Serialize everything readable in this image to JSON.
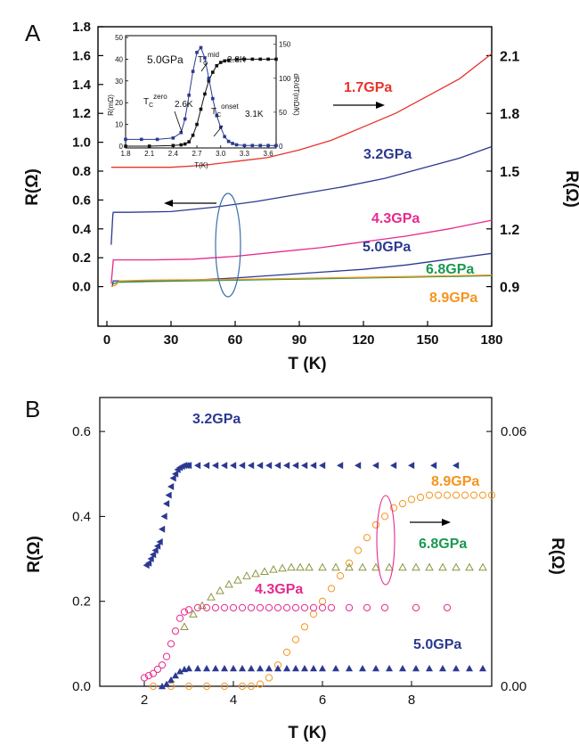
{
  "chart_data": [
    {
      "panel": "A",
      "type": "line",
      "xlabel": "T (K)",
      "ylabel_left": "R(Ω)",
      "ylabel_right": "R(Ω)",
      "xlim": [
        0,
        180
      ],
      "ylim_left": [
        -0.2,
        1.8
      ],
      "ylim_right": [
        0.75,
        2.25
      ],
      "xticks": [
        "0",
        "30",
        "60",
        "90",
        "120",
        "150",
        "180"
      ],
      "yticks_left": [
        "0.0",
        "0.2",
        "0.4",
        "0.6",
        "0.8",
        "1.0",
        "1.2",
        "1.4",
        "1.6",
        "1.8"
      ],
      "yticks_right": [
        "0.9",
        "1.2",
        "1.5",
        "1.8",
        "2.1"
      ],
      "series": [
        {
          "name": "1.7GPa",
          "color": "#e8322b",
          "axis": "right",
          "x": [
            2,
            15,
            30,
            45,
            60,
            75,
            90,
            105,
            120,
            135,
            150,
            165,
            180
          ],
          "y": [
            1.52,
            1.52,
            1.52,
            1.53,
            1.55,
            1.57,
            1.61,
            1.66,
            1.73,
            1.8,
            1.89,
            1.98,
            2.11
          ]
        },
        {
          "name": "3.2GPa",
          "color": "#2b3990",
          "axis": "left",
          "x": [
            2.0,
            2.4,
            2.8,
            3.0,
            10,
            30,
            50,
            70,
            90,
            110,
            130,
            150,
            165,
            180
          ],
          "y": [
            0.29,
            0.4,
            0.5,
            0.515,
            0.515,
            0.52,
            0.55,
            0.59,
            0.64,
            0.69,
            0.75,
            0.83,
            0.89,
            0.97
          ]
        },
        {
          "name": "4.3GPa",
          "color": "#e62a8e",
          "axis": "left",
          "x": [
            2.0,
            2.5,
            2.9,
            3.0,
            20,
            40,
            60,
            80,
            100,
            120,
            140,
            160,
            180
          ],
          "y": [
            0.02,
            0.1,
            0.17,
            0.185,
            0.185,
            0.19,
            0.21,
            0.24,
            0.27,
            0.31,
            0.35,
            0.4,
            0.46
          ]
        },
        {
          "name": "5.0GPa",
          "color": "#2b3990",
          "axis": "left",
          "x": [
            2.5,
            3.0,
            20,
            40,
            60,
            80,
            100,
            120,
            140,
            160,
            180
          ],
          "y": [
            0.0,
            0.04,
            0.04,
            0.045,
            0.06,
            0.08,
            0.1,
            0.12,
            0.15,
            0.19,
            0.23
          ]
        },
        {
          "name": "6.8GPa",
          "color": "#1a9850",
          "axis": "left",
          "x": [
            3,
            5,
            20,
            60,
            100,
            140,
            180
          ],
          "y": [
            0.02,
            0.03,
            0.035,
            0.045,
            0.055,
            0.065,
            0.075
          ]
        },
        {
          "name": "8.9GPa",
          "color": "#f7941d",
          "axis": "left",
          "x": [
            2,
            4,
            6,
            20,
            60,
            100,
            140,
            180
          ],
          "y": [
            0.0,
            0.01,
            0.04,
            0.045,
            0.05,
            0.06,
            0.07,
            0.08
          ]
        }
      ],
      "labels": [
        "1.7GPa",
        "3.2GPa",
        "4.3GPa",
        "5.0GPa",
        "6.8GPa",
        "8.9GPa"
      ],
      "inset": {
        "pressure": "5.0GPa",
        "xlabel": "T(K)",
        "ylabel_left": "R(mΩ)",
        "ylabel_right": "dR/dT(mΩ/K)",
        "xlim": [
          1.8,
          3.7
        ],
        "ylim_left": [
          0,
          50
        ],
        "ylim_right": [
          0,
          160
        ],
        "xticks": [
          "1.8",
          "2.1",
          "2.4",
          "2.7",
          "3.0",
          "3.3",
          "3.6"
        ],
        "yticks_left": [
          "0",
          "10",
          "20",
          "30",
          "40",
          "50"
        ],
        "yticks_right": [
          "0",
          "50",
          "100",
          "150"
        ],
        "tc_mid": "2.8K",
        "tc_zero": "2.6K",
        "tc_onset": "3.1K",
        "resistance": {
          "x": [
            1.8,
            2.1,
            2.4,
            2.5,
            2.55,
            2.6,
            2.65,
            2.7,
            2.75,
            2.8,
            2.85,
            2.9,
            2.95,
            3.0,
            3.05,
            3.1,
            3.2,
            3.3,
            3.4,
            3.5,
            3.6,
            3.7
          ],
          "y": [
            0,
            0,
            0.3,
            0.6,
            1.0,
            2,
            5,
            10,
            17,
            24,
            30,
            34,
            37,
            38.5,
            39.2,
            39.6,
            39.9,
            40,
            40,
            40,
            40,
            40
          ]
        },
        "derivative": {
          "x": [
            1.8,
            2.0,
            2.2,
            2.4,
            2.5,
            2.55,
            2.6,
            2.65,
            2.7,
            2.75,
            2.8,
            2.85,
            2.9,
            2.95,
            3.0,
            3.05,
            3.1,
            3.15,
            3.2,
            3.3,
            3.4,
            3.5,
            3.6,
            3.7
          ],
          "y": [
            10,
            10,
            10,
            12,
            20,
            40,
            75,
            110,
            138,
            145,
            130,
            100,
            70,
            45,
            28,
            14,
            7,
            4,
            2,
            1,
            1,
            1,
            1,
            1
          ]
        }
      }
    },
    {
      "panel": "B",
      "type": "scatter",
      "xlabel": "T (K)",
      "ylabel_left": "R(Ω)",
      "ylabel_right": "R(Ω)",
      "xlim": [
        1,
        9.8
      ],
      "ylim_left": [
        0,
        0.68
      ],
      "ylim_right": [
        0,
        0.068
      ],
      "xticks": [
        "2",
        "4",
        "6",
        "8"
      ],
      "yticks_left": [
        "0.0",
        "0.2",
        "0.4",
        "0.6"
      ],
      "yticks_right": [
        "0.00",
        "0.06"
      ],
      "series": [
        {
          "name": "3.2GPa",
          "color": "#2b3990",
          "marker": "triangle-left-filled",
          "axis": "left",
          "x": [
            2.05,
            2.1,
            2.15,
            2.2,
            2.25,
            2.3,
            2.35,
            2.4,
            2.45,
            2.5,
            2.55,
            2.6,
            2.65,
            2.7,
            2.75,
            2.8,
            2.85,
            2.9,
            2.95,
            3.0,
            3.2,
            3.4,
            3.6,
            3.8,
            4.0,
            4.2,
            4.4,
            4.6,
            4.8,
            5.0,
            5.2,
            5.4,
            5.6,
            5.8,
            6.0,
            6.4,
            6.8,
            7.2,
            7.6,
            8.0,
            8.5,
            9.0
          ],
          "y": [
            0.285,
            0.29,
            0.3,
            0.31,
            0.32,
            0.33,
            0.34,
            0.37,
            0.4,
            0.43,
            0.45,
            0.47,
            0.49,
            0.5,
            0.51,
            0.515,
            0.518,
            0.52,
            0.52,
            0.52,
            0.52,
            0.52,
            0.52,
            0.52,
            0.52,
            0.52,
            0.52,
            0.52,
            0.52,
            0.52,
            0.52,
            0.52,
            0.52,
            0.52,
            0.52,
            0.52,
            0.52,
            0.52,
            0.52,
            0.52,
            0.52,
            0.52
          ]
        },
        {
          "name": "8.9GPa",
          "color": "#f7941d",
          "marker": "circle-open",
          "axis": "right",
          "x": [
            2.2,
            2.6,
            3.0,
            3.4,
            3.8,
            4.2,
            4.4,
            4.6,
            4.8,
            5.0,
            5.2,
            5.4,
            5.6,
            5.8,
            6.0,
            6.2,
            6.4,
            6.6,
            6.8,
            7.0,
            7.2,
            7.4,
            7.6,
            7.8,
            8.0,
            8.2,
            8.4,
            8.6,
            8.8,
            9.0,
            9.2,
            9.4,
            9.6,
            9.8
          ],
          "y": [
            0.0,
            0.0,
            0.0,
            0.0,
            0.0,
            0.0,
            0.0,
            0.0005,
            0.002,
            0.005,
            0.008,
            0.011,
            0.014,
            0.017,
            0.02,
            0.023,
            0.026,
            0.029,
            0.032,
            0.035,
            0.038,
            0.04,
            0.042,
            0.043,
            0.044,
            0.0445,
            0.045,
            0.045,
            0.045,
            0.045,
            0.045,
            0.045,
            0.045,
            0.045
          ]
        },
        {
          "name": "6.8GPa",
          "color": "#8c9640",
          "marker": "triangle-up-open",
          "axis": "left",
          "x": [
            2.9,
            3.1,
            3.3,
            3.5,
            3.7,
            3.9,
            4.1,
            4.3,
            4.5,
            4.7,
            4.9,
            5.1,
            5.3,
            5.5,
            5.7,
            6.0,
            6.3,
            6.6,
            6.9,
            7.2,
            7.5,
            7.8,
            8.1,
            8.4,
            8.7,
            9.0,
            9.3,
            9.6
          ],
          "y": [
            0.14,
            0.17,
            0.19,
            0.21,
            0.225,
            0.24,
            0.25,
            0.26,
            0.265,
            0.27,
            0.275,
            0.278,
            0.28,
            0.28,
            0.28,
            0.28,
            0.28,
            0.28,
            0.28,
            0.28,
            0.28,
            0.28,
            0.28,
            0.28,
            0.28,
            0.28,
            0.28,
            0.28
          ]
        },
        {
          "name": "4.3GPa",
          "color": "#e62a8e",
          "marker": "circle-open",
          "axis": "left",
          "x": [
            2.0,
            2.1,
            2.2,
            2.3,
            2.4,
            2.5,
            2.6,
            2.7,
            2.8,
            2.9,
            3.0,
            3.2,
            3.4,
            3.6,
            3.8,
            4.0,
            4.2,
            4.4,
            4.6,
            4.8,
            5.0,
            5.2,
            5.4,
            5.6,
            5.8,
            6.0,
            6.2,
            6.6,
            7.0,
            7.4,
            8.1,
            8.8
          ],
          "y": [
            0.02,
            0.025,
            0.03,
            0.04,
            0.05,
            0.07,
            0.1,
            0.13,
            0.16,
            0.175,
            0.18,
            0.185,
            0.185,
            0.185,
            0.185,
            0.185,
            0.185,
            0.185,
            0.185,
            0.185,
            0.185,
            0.185,
            0.185,
            0.185,
            0.185,
            0.185,
            0.185,
            0.185,
            0.185,
            0.185,
            0.185,
            0.185
          ]
        },
        {
          "name": "5.0GPa",
          "color": "#2b3990",
          "marker": "triangle-up-filled",
          "axis": "left",
          "x": [
            2.4,
            2.5,
            2.6,
            2.7,
            2.8,
            2.9,
            3.0,
            3.2,
            3.4,
            3.6,
            3.8,
            4.0,
            4.2,
            4.4,
            4.6,
            4.8,
            5.0,
            5.2,
            5.4,
            5.6,
            5.8,
            6.0,
            6.3,
            6.6,
            6.9,
            7.2,
            7.5,
            7.8,
            8.1,
            8.4,
            8.7,
            9.0,
            9.3,
            9.6
          ],
          "y": [
            0.0,
            0.005,
            0.015,
            0.025,
            0.035,
            0.04,
            0.042,
            0.042,
            0.042,
            0.042,
            0.042,
            0.042,
            0.042,
            0.042,
            0.042,
            0.042,
            0.042,
            0.042,
            0.042,
            0.042,
            0.042,
            0.042,
            0.042,
            0.042,
            0.042,
            0.042,
            0.042,
            0.042,
            0.042,
            0.042,
            0.042,
            0.042,
            0.042,
            0.042
          ]
        }
      ],
      "labels": [
        "3.2GPa",
        "8.9GPa",
        "6.8GPa",
        "4.3GPa",
        "5.0GPa"
      ]
    }
  ]
}
